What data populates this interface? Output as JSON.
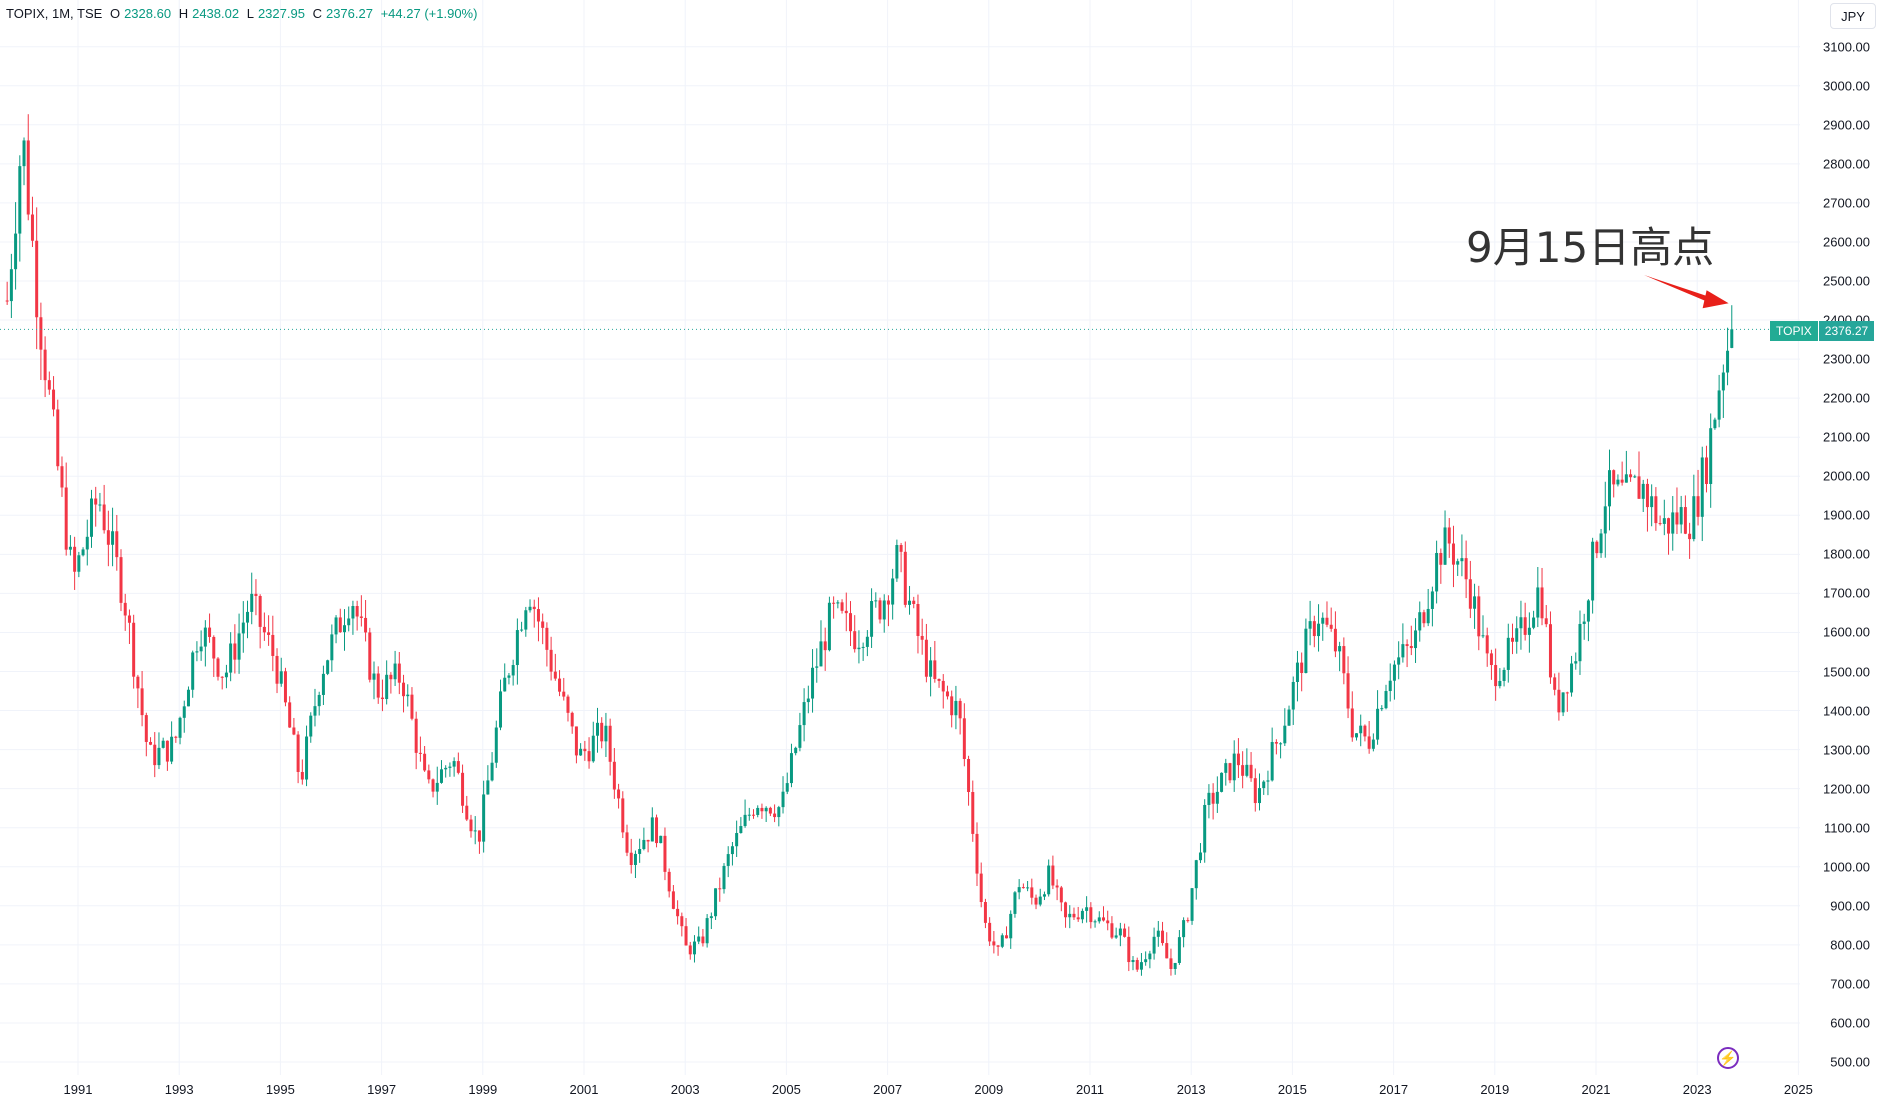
{
  "legend": {
    "symbol": "TOPIX, 1M, TSE",
    "open_label": "O",
    "open": "2328.60",
    "high_label": "H",
    "high": "2438.02",
    "low_label": "L",
    "low": "2327.95",
    "close_label": "C",
    "close": "2376.27",
    "change": "+44.27 (+1.90%)"
  },
  "currency": "JPY",
  "price_badge": {
    "name": "TOPIX",
    "value": "2376.27"
  },
  "annotation": "9月15日高点",
  "colors": {
    "up": "#089981",
    "down": "#f23645",
    "grid": "#f0f3fa",
    "arrow": "#e8201a"
  },
  "chart_data": {
    "type": "candlestick",
    "title": "TOPIX, 1M, TSE",
    "interval": "1M",
    "y_ticks": [
      "500.00",
      "600.00",
      "700.00",
      "800.00",
      "900.00",
      "1000.00",
      "1100.00",
      "1200.00",
      "1300.00",
      "1400.00",
      "1500.00",
      "1600.00",
      "1700.00",
      "1800.00",
      "1900.00",
      "2000.00",
      "2100.00",
      "2200.00",
      "2300.00",
      "2400.00",
      "2500.00",
      "2600.00",
      "2700.00",
      "2800.00",
      "2900.00",
      "3000.00",
      "3100.00"
    ],
    "ylim": [
      470,
      3140
    ],
    "x_ticks": [
      "1991",
      "1993",
      "1995",
      "1997",
      "1999",
      "2001",
      "2003",
      "2005",
      "2007",
      "2009",
      "2011",
      "2013",
      "2015",
      "2017",
      "2019",
      "2021",
      "2023",
      "2025"
    ],
    "x_tick_years": [
      1991,
      1993,
      1995,
      1997,
      1999,
      2001,
      2003,
      2005,
      2007,
      2009,
      2011,
      2013,
      2015,
      2017,
      2019,
      2021,
      2023,
      2025
    ],
    "xlim": [
      1989.55,
      2025.95
    ],
    "last_price": 2376.27,
    "annotation_point": {
      "year": 2023.7,
      "price": 2438.02
    },
    "anchor_closes": [
      [
        1989.6,
        2450
      ],
      [
        1989.9,
        2881
      ],
      [
        1990.2,
        2450
      ],
      [
        1990.6,
        2020
      ],
      [
        1990.9,
        1730
      ],
      [
        1991.4,
        1950
      ],
      [
        1991.9,
        1700
      ],
      [
        1992.4,
        1280
      ],
      [
        1992.9,
        1310
      ],
      [
        1993.4,
        1620
      ],
      [
        1993.9,
        1490
      ],
      [
        1994.4,
        1680
      ],
      [
        1994.9,
        1530
      ],
      [
        1995.4,
        1220
      ],
      [
        1995.8,
        1500
      ],
      [
        1996.4,
        1700
      ],
      [
        1996.9,
        1450
      ],
      [
        1997.4,
        1490
      ],
      [
        1997.9,
        1190
      ],
      [
        1998.4,
        1280
      ],
      [
        1998.9,
        1060
      ],
      [
        1999.4,
        1450
      ],
      [
        1999.9,
        1720
      ],
      [
        2000.4,
        1500
      ],
      [
        2000.9,
        1280
      ],
      [
        2001.4,
        1350
      ],
      [
        2001.9,
        1030
      ],
      [
        2002.4,
        1110
      ],
      [
        2003.0,
        790
      ],
      [
        2003.3,
        800
      ],
      [
        2003.9,
        1040
      ],
      [
        2004.4,
        1170
      ],
      [
        2004.9,
        1150
      ],
      [
        2005.5,
        1480
      ],
      [
        2005.9,
        1650
      ],
      [
        2006.4,
        1590
      ],
      [
        2006.9,
        1680
      ],
      [
        2007.2,
        1790
      ],
      [
        2007.6,
        1590
      ],
      [
        2007.9,
        1470
      ],
      [
        2008.4,
        1400
      ],
      [
        2008.7,
        1080
      ],
      [
        2008.9,
        860
      ],
      [
        2009.2,
        770
      ],
      [
        2009.6,
        960
      ],
      [
        2009.9,
        910
      ],
      [
        2010.2,
        980
      ],
      [
        2010.5,
        860
      ],
      [
        2010.9,
        900
      ],
      [
        2011.2,
        860
      ],
      [
        2011.6,
        830
      ],
      [
        2011.9,
        730
      ],
      [
        2012.3,
        830
      ],
      [
        2012.6,
        740
      ],
      [
        2012.9,
        860
      ],
      [
        2013.3,
        1150
      ],
      [
        2013.9,
        1280
      ],
      [
        2014.3,
        1180
      ],
      [
        2014.8,
        1360
      ],
      [
        2015.2,
        1540
      ],
      [
        2015.5,
        1650
      ],
      [
        2015.9,
        1550
      ],
      [
        2016.2,
        1350
      ],
      [
        2016.5,
        1320
      ],
      [
        2016.9,
        1500
      ],
      [
        2017.4,
        1570
      ],
      [
        2017.9,
        1810
      ],
      [
        2018.1,
        1830
      ],
      [
        2018.5,
        1720
      ],
      [
        2018.9,
        1490
      ],
      [
        2019.4,
        1560
      ],
      [
        2019.9,
        1720
      ],
      [
        2020.2,
        1400
      ],
      [
        2020.6,
        1550
      ],
      [
        2020.9,
        1760
      ],
      [
        2021.2,
        1960
      ],
      [
        2021.6,
        1950
      ],
      [
        2021.9,
        1980
      ],
      [
        2022.3,
        1870
      ],
      [
        2022.7,
        1900
      ],
      [
        2022.9,
        1890
      ],
      [
        2023.2,
        2050
      ],
      [
        2023.5,
        2290
      ],
      [
        2023.7,
        2376.27
      ]
    ]
  }
}
